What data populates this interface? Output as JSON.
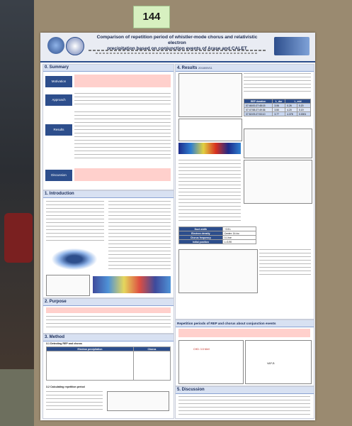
{
  "tag_number": "144",
  "poster": {
    "title_line1": "Comparison of repetition period of whistler-mode chorus and relativistic electron",
    "title_line2": "precipitation based on conjunction events of Arase and CALET",
    "sections": {
      "summary": "0. Summary",
      "introduction": "1. Introduction",
      "purpose": "2. Purpose",
      "method": "3. Method",
      "results": "4. Results",
      "repetition": "Repetition periods of REP and chorus about conjunction events",
      "discussion": "5. Discussion"
    },
    "summary_tags": [
      "Motivation",
      "Approach",
      "Results",
      "Discussion"
    ],
    "results_date": "2018/09/11",
    "method_sub": [
      "3.1 Detecting REP and chorus",
      "3.2 Calculating repetition period"
    ],
    "method_table_headers": [
      "Electron precipitation",
      "Chorus"
    ],
    "results_table_headers": [
      "REP duration",
      "L_dur",
      "L_mid"
    ],
    "results_table_rows": [
      [
        "07:46:00-07:48:15",
        "3.06",
        "0.26",
        "0.20"
      ],
      [
        "07:47:58-07:49:36",
        "3.50",
        "4.20",
        "0.19"
      ],
      [
        "07:52:09-07:53:10",
        "3.77",
        "4.378",
        "0.0001"
      ]
    ],
    "duct_table": [
      [
        "Duct width",
        "~0.5 L"
      ],
      [
        "Electron density",
        "Center: 14 /cc"
      ],
      [
        "Chorus frequency",
        "0.1 fce"
      ],
      [
        "Initial position",
        "L=3.90"
      ]
    ],
    "plot_labels": {
      "chd": "CHD: 3.5 MeV",
      "vap": "VAP-B"
    }
  }
}
